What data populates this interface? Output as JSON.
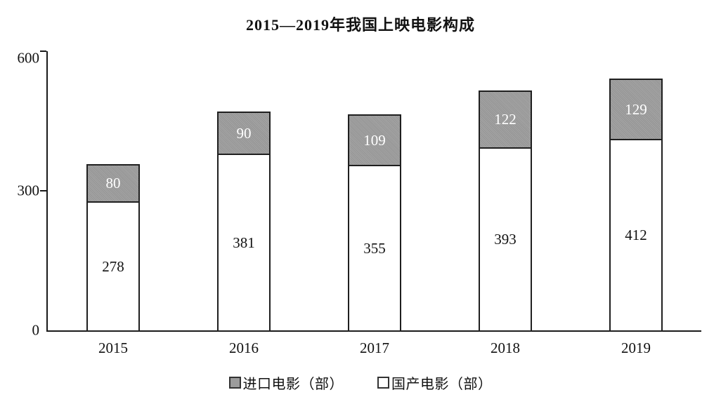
{
  "chart_data": {
    "type": "bar",
    "stacked": true,
    "title": "2015—2019年我国上映电影构成",
    "categories": [
      "2015",
      "2016",
      "2017",
      "2018",
      "2019"
    ],
    "series": [
      {
        "name": "进口电影（部）",
        "values": [
          80,
          90,
          109,
          122,
          129
        ],
        "color": "#9c9c9c",
        "value_label_color": "#ffffff",
        "position": "top"
      },
      {
        "name": "国产电影（部）",
        "values": [
          278,
          381,
          355,
          393,
          412
        ],
        "color": "#ffffff",
        "value_label_color": "#111111",
        "position": "bottom"
      }
    ],
    "ylim": [
      0,
      600
    ],
    "yticks": [
      0,
      300,
      600
    ],
    "xlabel": "",
    "ylabel": "",
    "grid": false,
    "legend_position": "bottom",
    "axis_color": "#1a1a1a"
  }
}
